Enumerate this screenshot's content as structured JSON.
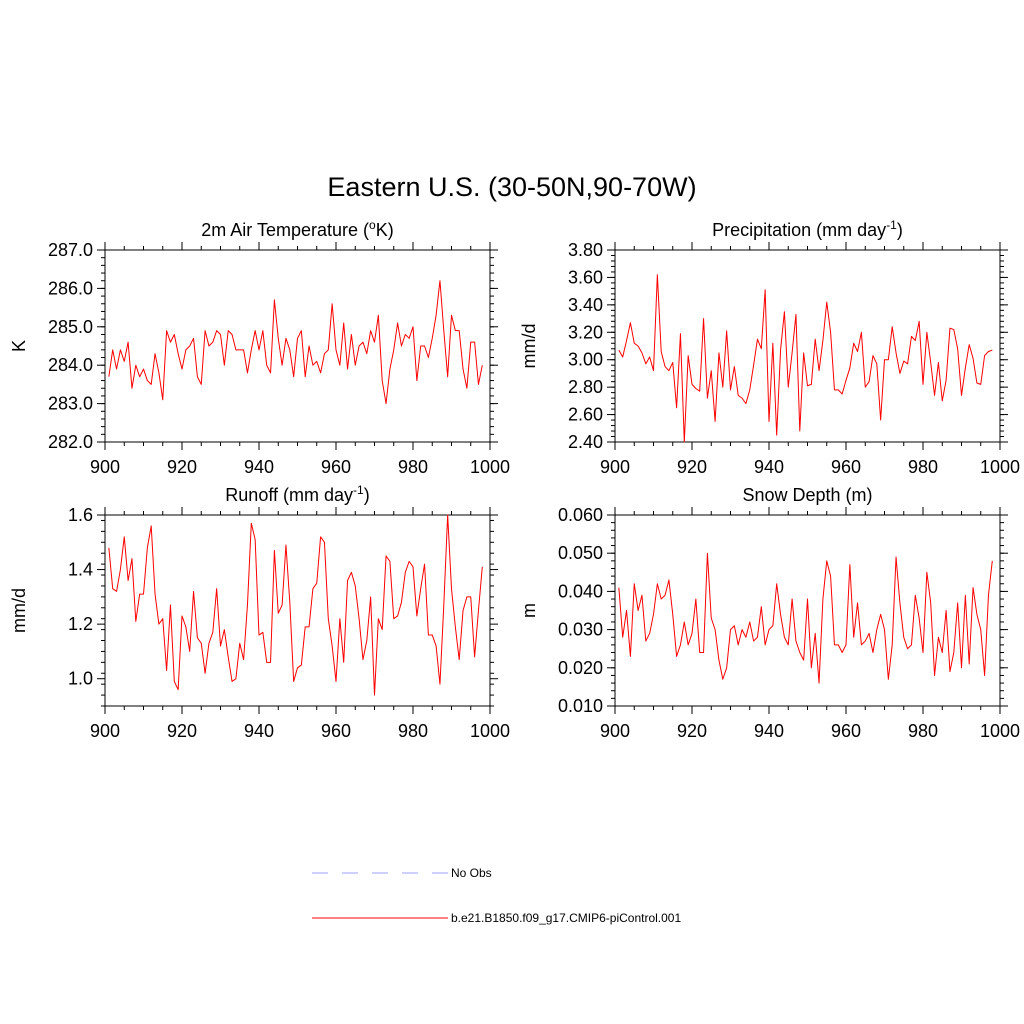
{
  "figure": {
    "title": "Eastern U.S. (30-50N,90-70W)"
  },
  "chart_data": [
    {
      "type": "line",
      "title": "2m Air Temperature (°K)",
      "title_parts": [
        "2m Air Temperature (",
        "o",
        "K)"
      ],
      "xlabel": "",
      "ylabel": "K",
      "xlim": [
        900,
        1000
      ],
      "ylim": [
        282.0,
        287.0
      ],
      "xticks": [
        "900",
        "920",
        "940",
        "960",
        "980",
        "1000"
      ],
      "yticks": [
        "282.0",
        "283.0",
        "284.0",
        "285.0",
        "286.0",
        "287.0"
      ],
      "grid": false,
      "series": [
        {
          "name": "b.e21.B1850.f09_g17.CMIP6-piControl.001",
          "color": "#ff0000",
          "x_start": 901,
          "values": [
            283.7,
            284.4,
            283.9,
            284.4,
            284.1,
            284.6,
            283.4,
            284.0,
            283.7,
            283.9,
            283.6,
            283.5,
            284.3,
            283.8,
            283.1,
            284.9,
            284.6,
            284.8,
            284.3,
            283.9,
            284.4,
            284.5,
            284.7,
            283.7,
            283.5,
            284.9,
            284.5,
            284.6,
            284.9,
            284.8,
            284.0,
            284.9,
            284.8,
            284.4,
            284.4,
            284.4,
            283.8,
            284.4,
            284.9,
            284.4,
            284.9,
            284.0,
            283.8,
            285.7,
            284.7,
            284.0,
            284.7,
            284.4,
            283.7,
            284.7,
            284.9,
            283.7,
            284.5,
            284.0,
            284.1,
            283.8,
            284.3,
            284.4,
            285.6,
            284.4,
            284.0,
            285.1,
            283.9,
            284.8,
            284.0,
            284.5,
            284.6,
            284.3,
            284.9,
            284.6,
            285.3,
            283.6,
            283.0,
            283.9,
            284.4,
            285.1,
            284.5,
            284.8,
            284.7,
            285.0,
            283.6,
            284.5,
            284.5,
            284.2,
            284.7,
            285.3,
            286.2,
            284.9,
            283.7,
            285.3,
            284.9,
            284.9,
            283.9,
            283.4,
            284.6,
            284.6,
            283.5,
            284.0
          ]
        }
      ]
    },
    {
      "type": "line",
      "title": "Precipitation (mm day⁻¹)",
      "title_parts": [
        "Precipitation (mm day",
        "-1",
        ")"
      ],
      "xlabel": "",
      "ylabel": "mm/d",
      "xlim": [
        900,
        1000
      ],
      "ylim": [
        2.4,
        3.8
      ],
      "xticks": [
        "900",
        "920",
        "940",
        "960",
        "980",
        "1000"
      ],
      "yticks": [
        "2.40",
        "2.60",
        "2.80",
        "3.00",
        "3.20",
        "3.40",
        "3.60",
        "3.80"
      ],
      "grid": false,
      "series": [
        {
          "name": "b.e21.B1850.f09_g17.CMIP6-piControl.001",
          "color": "#ff0000",
          "x_start": 901,
          "values": [
            3.07,
            3.02,
            3.14,
            3.27,
            3.12,
            3.1,
            3.05,
            2.97,
            3.02,
            2.92,
            3.62,
            3.06,
            2.95,
            2.92,
            2.98,
            2.65,
            3.19,
            2.4,
            3.03,
            2.82,
            2.79,
            2.77,
            3.3,
            2.72,
            2.92,
            2.55,
            3.05,
            2.8,
            3.21,
            2.78,
            2.95,
            2.74,
            2.72,
            2.68,
            2.78,
            2.96,
            3.15,
            3.08,
            3.51,
            2.55,
            3.12,
            2.45,
            3.07,
            3.35,
            2.8,
            3.05,
            3.33,
            2.48,
            3.05,
            2.81,
            2.82,
            3.15,
            2.92,
            3.14,
            3.42,
            3.2,
            2.78,
            2.78,
            2.75,
            2.85,
            2.94,
            3.12,
            3.06,
            3.2,
            2.8,
            2.84,
            3.03,
            2.97,
            2.56,
            3.0,
            3.0,
            3.24,
            3.05,
            2.9,
            2.99,
            2.97,
            3.17,
            3.14,
            3.28,
            2.82,
            3.2,
            2.98,
            2.74,
            2.98,
            2.7,
            2.85,
            3.23,
            3.22,
            3.08,
            2.74,
            2.94,
            3.11,
            3.01,
            2.83,
            2.82,
            3.03,
            3.06,
            3.07
          ]
        }
      ]
    },
    {
      "type": "line",
      "title": "Runoff (mm day⁻¹)",
      "title_parts": [
        "Runoff (mm day",
        "-1",
        ")"
      ],
      "xlabel": "",
      "ylabel": "mm/d",
      "xlim": [
        900,
        1000
      ],
      "ylim": [
        0.9,
        1.6
      ],
      "xticks": [
        "900",
        "920",
        "940",
        "960",
        "980",
        "1000"
      ],
      "yticks": [
        "1.0",
        "1.2",
        "1.4",
        "1.6"
      ],
      "grid": false,
      "series": [
        {
          "name": "b.e21.B1850.f09_g17.CMIP6-piControl.001",
          "color": "#ff0000",
          "x_start": 901,
          "values": [
            1.48,
            1.33,
            1.32,
            1.4,
            1.52,
            1.36,
            1.44,
            1.21,
            1.31,
            1.31,
            1.48,
            1.56,
            1.31,
            1.2,
            1.22,
            1.03,
            1.27,
            0.99,
            0.96,
            1.23,
            1.19,
            1.1,
            1.32,
            1.15,
            1.13,
            1.02,
            1.13,
            1.17,
            1.33,
            1.12,
            1.18,
            1.08,
            0.99,
            1.0,
            1.13,
            1.07,
            1.27,
            1.57,
            1.51,
            1.16,
            1.17,
            1.06,
            1.06,
            1.47,
            1.24,
            1.27,
            1.49,
            1.28,
            0.99,
            1.04,
            1.05,
            1.19,
            1.19,
            1.33,
            1.35,
            1.52,
            1.5,
            1.22,
            1.12,
            0.99,
            1.22,
            1.06,
            1.36,
            1.39,
            1.34,
            1.22,
            1.07,
            1.14,
            1.3,
            0.94,
            1.22,
            1.18,
            1.45,
            1.43,
            1.22,
            1.23,
            1.28,
            1.39,
            1.43,
            1.41,
            1.23,
            1.33,
            1.42,
            1.16,
            1.16,
            1.12,
            0.98,
            1.27,
            1.6,
            1.33,
            1.19,
            1.07,
            1.25,
            1.3,
            1.3,
            1.08,
            1.25,
            1.41
          ]
        }
      ]
    },
    {
      "type": "line",
      "title": "Snow Depth (m)",
      "title_parts": [
        "Snow Depth (m)",
        "",
        ""
      ],
      "xlabel": "",
      "ylabel": "m",
      "xlim": [
        900,
        1000
      ],
      "ylim": [
        0.01,
        0.06
      ],
      "xticks": [
        "900",
        "920",
        "940",
        "960",
        "980",
        "1000"
      ],
      "yticks": [
        "0.010",
        "0.020",
        "0.030",
        "0.040",
        "0.050",
        "0.060"
      ],
      "grid": false,
      "series": [
        {
          "name": "b.e21.B1850.f09_g17.CMIP6-piControl.001",
          "color": "#ff0000",
          "x_start": 901,
          "values": [
            0.041,
            0.028,
            0.035,
            0.023,
            0.042,
            0.035,
            0.039,
            0.027,
            0.029,
            0.034,
            0.042,
            0.038,
            0.039,
            0.043,
            0.034,
            0.023,
            0.026,
            0.032,
            0.026,
            0.029,
            0.038,
            0.024,
            0.024,
            0.05,
            0.033,
            0.03,
            0.022,
            0.017,
            0.02,
            0.03,
            0.031,
            0.026,
            0.03,
            0.028,
            0.032,
            0.027,
            0.028,
            0.036,
            0.026,
            0.03,
            0.031,
            0.042,
            0.034,
            0.028,
            0.026,
            0.038,
            0.027,
            0.024,
            0.022,
            0.038,
            0.02,
            0.029,
            0.016,
            0.038,
            0.048,
            0.044,
            0.026,
            0.026,
            0.024,
            0.026,
            0.047,
            0.028,
            0.037,
            0.026,
            0.027,
            0.029,
            0.024,
            0.03,
            0.034,
            0.03,
            0.017,
            0.026,
            0.049,
            0.037,
            0.028,
            0.025,
            0.026,
            0.039,
            0.033,
            0.024,
            0.045,
            0.037,
            0.018,
            0.028,
            0.024,
            0.035,
            0.019,
            0.024,
            0.037,
            0.02,
            0.039,
            0.021,
            0.041,
            0.034,
            0.03,
            0.018,
            0.039,
            0.048
          ]
        }
      ]
    }
  ],
  "legend": {
    "items": [
      {
        "label": "No Obs",
        "color": "#a0a0ff",
        "style": "dashed"
      },
      {
        "label": "b.e21.B1850.f09_g17.CMIP6-piControl.001",
        "color": "#ff0000",
        "style": "solid"
      }
    ]
  }
}
